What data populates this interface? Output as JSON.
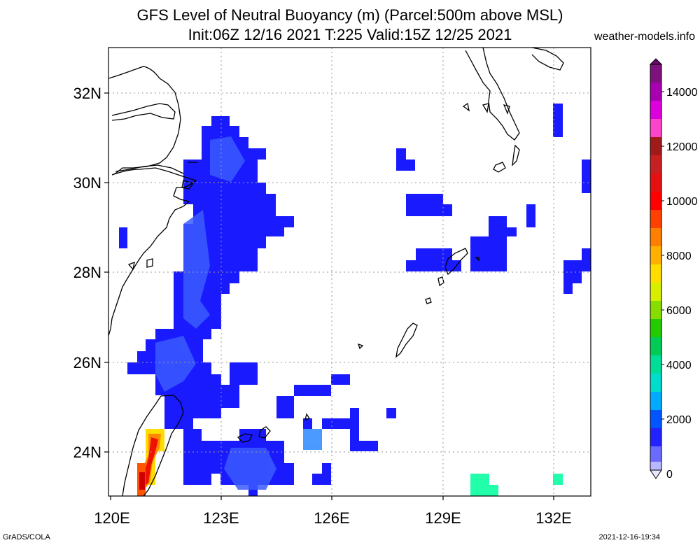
{
  "title_line1": "GFS Level of Neutral Buoyancy (m) (Parcel:500m above MSL)",
  "title_line2": "Init:06Z 12/16 2021 T:225 Valid:15Z 12/25 2021",
  "site": "weather-models.info",
  "footer_left": "GrADS/COLA",
  "footer_right": "2021-12-16-19:34",
  "lat_labels": [
    "32N",
    "30N",
    "28N",
    "26N",
    "24N"
  ],
  "lon_labels": [
    "120E",
    "123E",
    "126E",
    "129E",
    "132E"
  ],
  "colorbar_labels": [
    "14000",
    "12000",
    "10000",
    "8000",
    "6000",
    "4000",
    "2000",
    "0"
  ],
  "colors": {
    "lnb_blue": "#1a1aff",
    "lnb_blue_dark": "#0a0aee",
    "lnb_blue_light": "#3355ff",
    "cyan": "#22ccff",
    "teal": "#22ffaa",
    "red": "#ee1100",
    "yellow": "#ffee00",
    "coast": "#000000"
  }
}
